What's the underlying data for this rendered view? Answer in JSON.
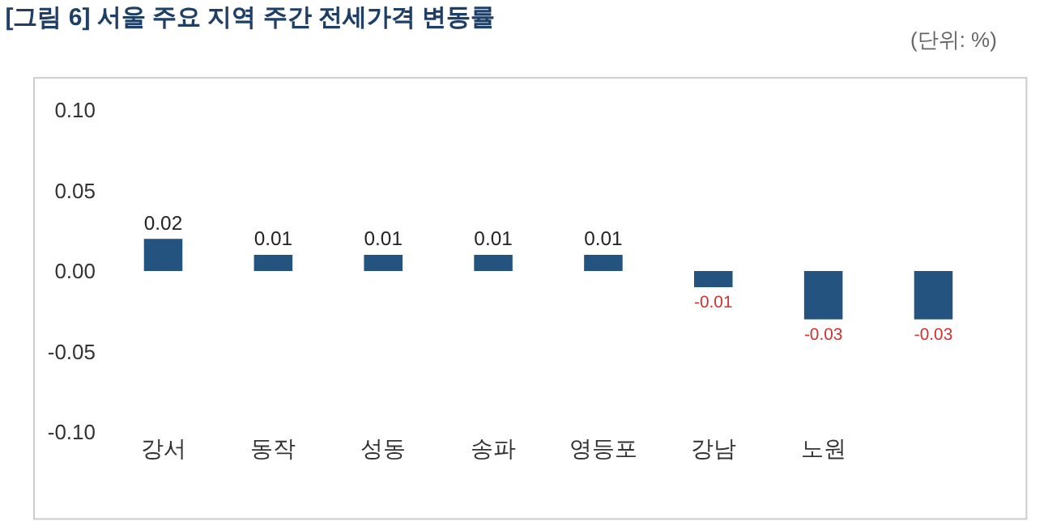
{
  "chart_data": {
    "type": "bar",
    "title": "[그림 6] 서울 주요 지역 주간 전세가격 변동률",
    "annotations": [
      "(단위: %)"
    ],
    "categories": [
      "강서",
      "동작",
      "성동",
      "송파",
      "영등포",
      "강남",
      "노원",
      null
    ],
    "values": [
      0.02,
      0.01,
      0.01,
      0.01,
      0.01,
      -0.01,
      -0.03,
      -0.03
    ],
    "color": "#245380",
    "ylim": [
      -0.1,
      0.1
    ],
    "yticks": [
      {
        "value": -0.1,
        "label": "-0.10"
      },
      {
        "value": -0.05,
        "label": "-0.05"
      },
      {
        "value": 0,
        "label": "0.00"
      },
      {
        "value": 0.05,
        "label": "0.05"
      },
      {
        "value": 0.1,
        "label": "0.10"
      }
    ],
    "data_labels": true,
    "grid": false,
    "legend": false
  }
}
